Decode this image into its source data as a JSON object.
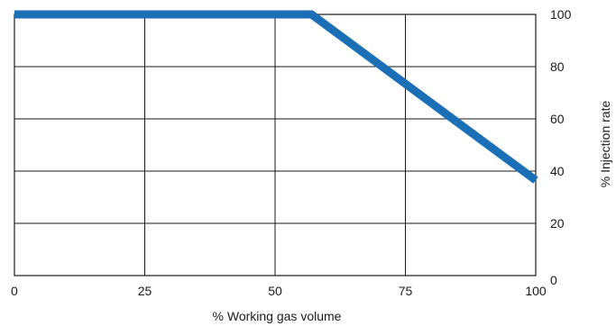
{
  "chart_data": {
    "type": "line",
    "title": "",
    "xlabel": "% Working gas volume",
    "ylabel": "% Injection rate",
    "xlim": [
      0,
      100
    ],
    "ylim": [
      0,
      100
    ],
    "x_ticks": [
      0,
      25,
      50,
      75,
      100
    ],
    "y_ticks": [
      0,
      20,
      40,
      60,
      80,
      100
    ],
    "y_axis_side": "right",
    "grid": true,
    "legend": "none",
    "series": [
      {
        "color": "#1b6fb6",
        "x": [
          0,
          57,
          100
        ],
        "y": [
          100,
          100,
          36.5
        ]
      }
    ],
    "grid_color": "#1a1a1a"
  }
}
